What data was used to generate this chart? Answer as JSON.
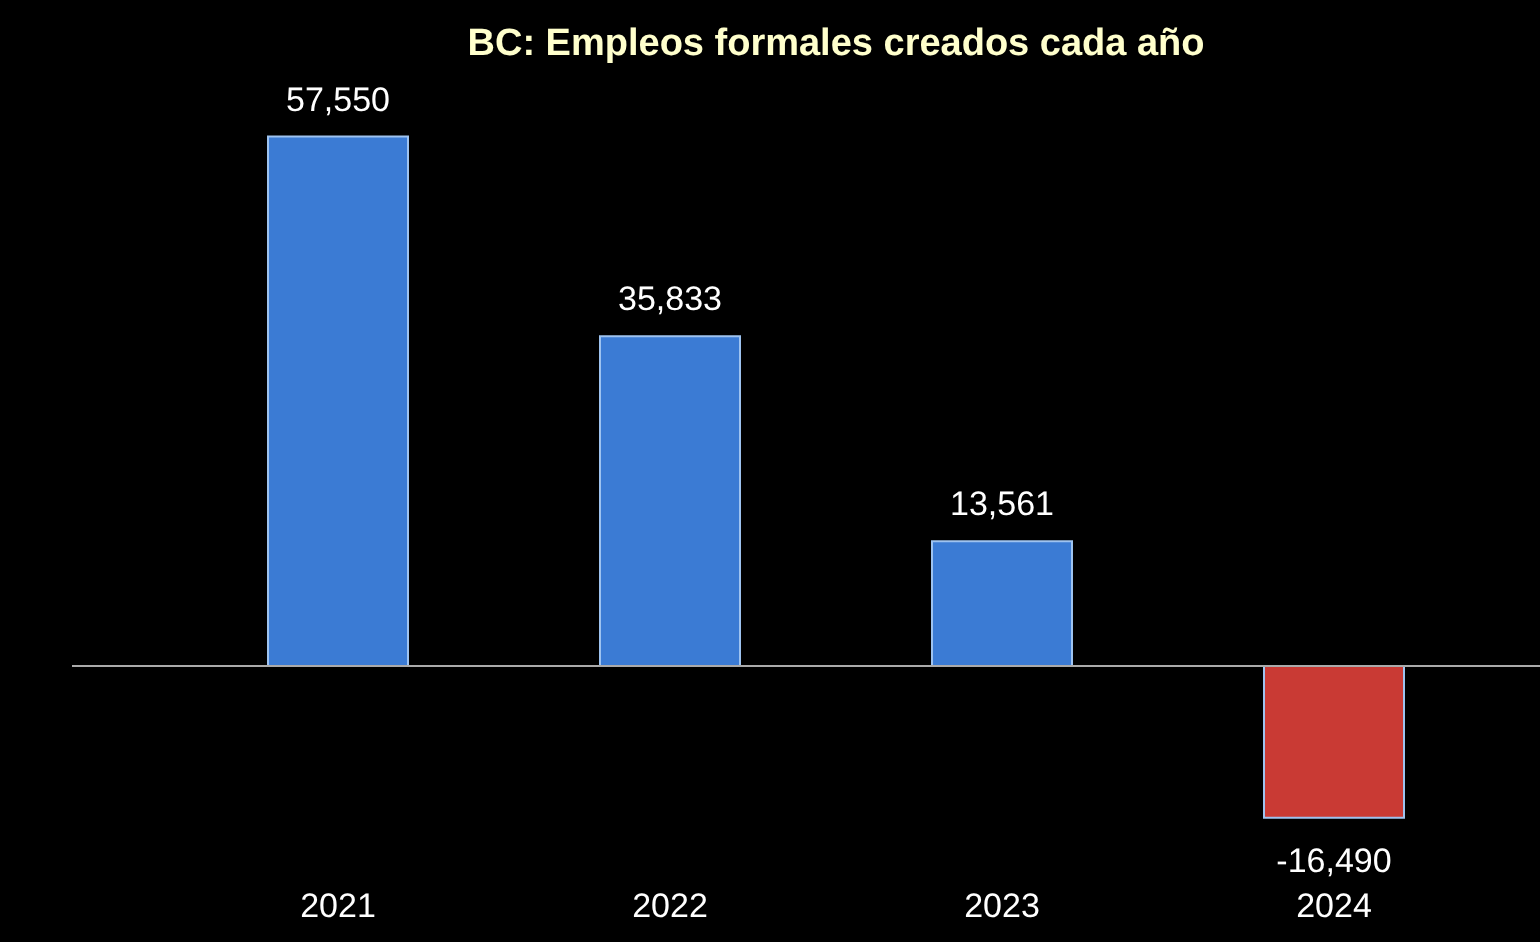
{
  "chart_data": {
    "type": "bar",
    "title": "BC: Empleos formales creados cada año",
    "categories": [
      "2021",
      "2022",
      "2023",
      "2024"
    ],
    "values": [
      57550,
      35833,
      13561,
      -16490
    ],
    "colors": [
      "#3b7bd4",
      "#3b7bd4",
      "#3b7bd4",
      "#c93a34"
    ],
    "value_labels": [
      "57,550",
      "35,833",
      "13,561",
      "-16,490"
    ]
  }
}
